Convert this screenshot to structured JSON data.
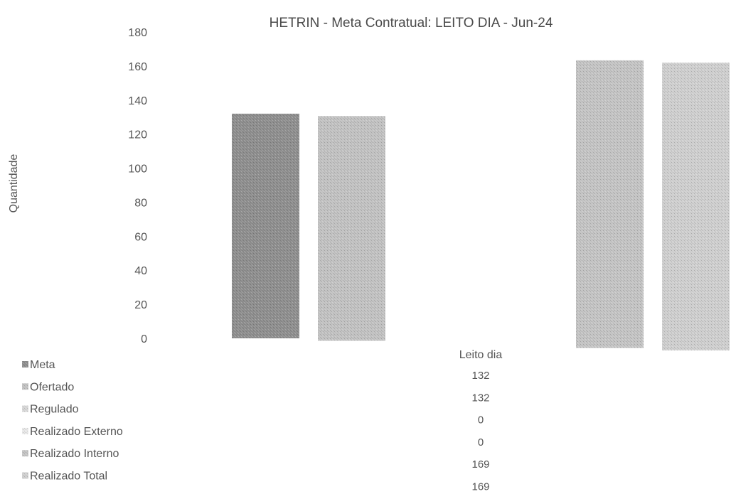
{
  "chart_data": {
    "type": "bar",
    "title": "HETRIN - Meta Contratual: LEITO DIA - Jun-24",
    "xlabel": "",
    "ylabel": "Quantidade",
    "ylim": [
      0,
      180
    ],
    "yticks": [
      0,
      20,
      40,
      60,
      80,
      100,
      120,
      140,
      160,
      180
    ],
    "grid": false,
    "legend_position": "bottom-left",
    "categories": [
      "Leito dia"
    ],
    "series": [
      {
        "name": "Meta",
        "values": [
          132
        ],
        "color": "#8f8f8f"
      },
      {
        "name": "Ofertado",
        "values": [
          132
        ],
        "color": "#c2c2c2"
      },
      {
        "name": "Regulado",
        "values": [
          0
        ],
        "color": "#d6d6d6"
      },
      {
        "name": "Realizado Externo",
        "values": [
          0
        ],
        "color": "#e8e8e8"
      },
      {
        "name": "Realizado Interno",
        "values": [
          169
        ],
        "color": "#c4c4c4"
      },
      {
        "name": "Realizado Total",
        "values": [
          169
        ],
        "color": "#cfcfcf"
      }
    ]
  }
}
